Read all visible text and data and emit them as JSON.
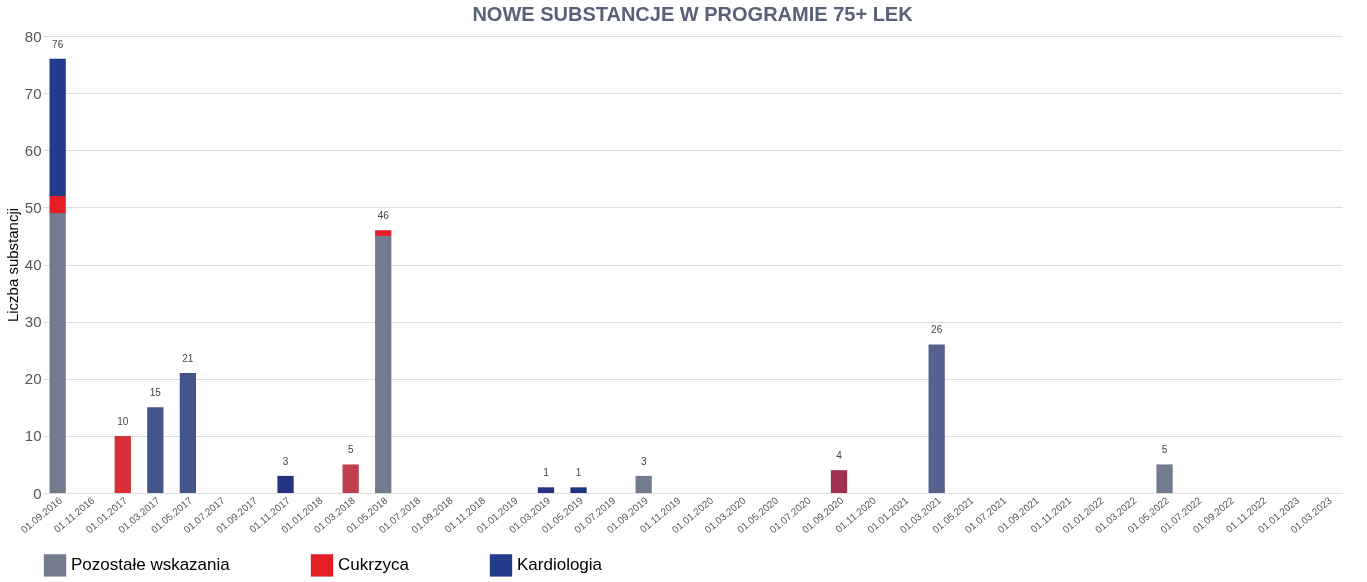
{
  "chart_data": {
    "type": "bar",
    "title": "NOWE SUBSTANCJE W PROGRAMIE 75+ LEK",
    "ylabel": "Liczba substancji",
    "stacked": true,
    "categories": [
      "01.09.2016",
      "01.11.2016",
      "01.01.2017",
      "01.03.2017",
      "01.05.2017",
      "01.07.2017",
      "01.09.2017",
      "01.11.2017",
      "01.01.2018",
      "01.03.2018",
      "01.05.2018",
      "01.07.2018",
      "01.09.2018",
      "01.11.2018",
      "01.01.2019",
      "01.03.2019",
      "01.05.2019",
      "01.07.2019",
      "01.09.2019",
      "01.11.2019",
      "01.01.2020",
      "01.03.2020",
      "01.05.2020",
      "01.07.2020",
      "01.09.2020",
      "01.11.2020",
      "01.01.2021",
      "01.03.2021",
      "01.05.2021",
      "01.07.2021",
      "01.09.2021",
      "01.11.2021",
      "01.01.2022",
      "01.03.2022",
      "01.05.2022",
      "01.07.2022",
      "01.09.2022",
      "01.11.2022",
      "01.01.2023",
      "01.03.2023"
    ],
    "series": [
      {
        "name": "Pozostałe wskazania",
        "color": "#737b8f",
        "values": [
          49,
          null,
          null,
          null,
          null,
          null,
          null,
          null,
          null,
          null,
          45,
          null,
          null,
          null,
          null,
          null,
          null,
          null,
          3,
          null,
          null,
          null,
          null,
          null,
          null,
          null,
          null,
          null,
          null,
          null,
          null,
          null,
          null,
          null,
          5,
          null,
          null,
          null,
          null,
          null
        ]
      },
      {
        "name": "Cukrzyca",
        "color": "#e41e26",
        "colors": [
          "#e41e26",
          null,
          "#d63038",
          null,
          null,
          null,
          null,
          null,
          null,
          "#c04050",
          "#e41e26",
          null,
          null,
          null,
          null,
          null,
          null,
          null,
          null,
          null,
          null,
          null,
          null,
          null,
          "#a03050",
          null,
          null,
          null,
          null,
          null,
          null,
          null,
          null,
          null,
          null,
          null,
          null,
          null,
          null,
          null
        ],
        "values": [
          3,
          null,
          10,
          null,
          null,
          null,
          null,
          null,
          null,
          5,
          1,
          null,
          null,
          null,
          null,
          null,
          null,
          null,
          null,
          null,
          null,
          null,
          null,
          null,
          4,
          null,
          null,
          null,
          null,
          null,
          null,
          null,
          null,
          null,
          null,
          null,
          null,
          null,
          null,
          null
        ]
      },
      {
        "name": "Kardiologia",
        "color": "#243a8a",
        "colors": [
          "#243a8a",
          null,
          null,
          "#44558c",
          "#44558c",
          null,
          null,
          "#233580",
          null,
          null,
          null,
          null,
          null,
          null,
          null,
          "#233580",
          "#233580",
          null,
          null,
          null,
          null,
          null,
          null,
          null,
          null,
          null,
          null,
          "#55628e",
          null,
          null,
          null,
          null,
          null,
          null,
          null,
          null,
          null,
          null,
          null,
          null
        ],
        "values": [
          24,
          null,
          null,
          15,
          21,
          null,
          null,
          3,
          null,
          null,
          null,
          null,
          null,
          null,
          null,
          1,
          1,
          null,
          null,
          null,
          null,
          null,
          null,
          null,
          null,
          null,
          null,
          26,
          null,
          null,
          null,
          null,
          null,
          null,
          null,
          null,
          null,
          null,
          null,
          null
        ]
      }
    ],
    "totals": [
      "76",
      null,
      "10",
      "15",
      "21",
      null,
      null,
      "3",
      null,
      "5",
      "46",
      null,
      null,
      null,
      null,
      "1",
      "1",
      null,
      "3",
      null,
      null,
      null,
      null,
      null,
      "4",
      null,
      null,
      "26",
      null,
      null,
      null,
      null,
      null,
      null,
      "5",
      null,
      null,
      null,
      null,
      null
    ],
    "ylim": [
      0,
      80
    ],
    "yticks": [
      0,
      10,
      20,
      30,
      40,
      50,
      60,
      70,
      80
    ],
    "grid": "y",
    "legend": "bottom"
  }
}
